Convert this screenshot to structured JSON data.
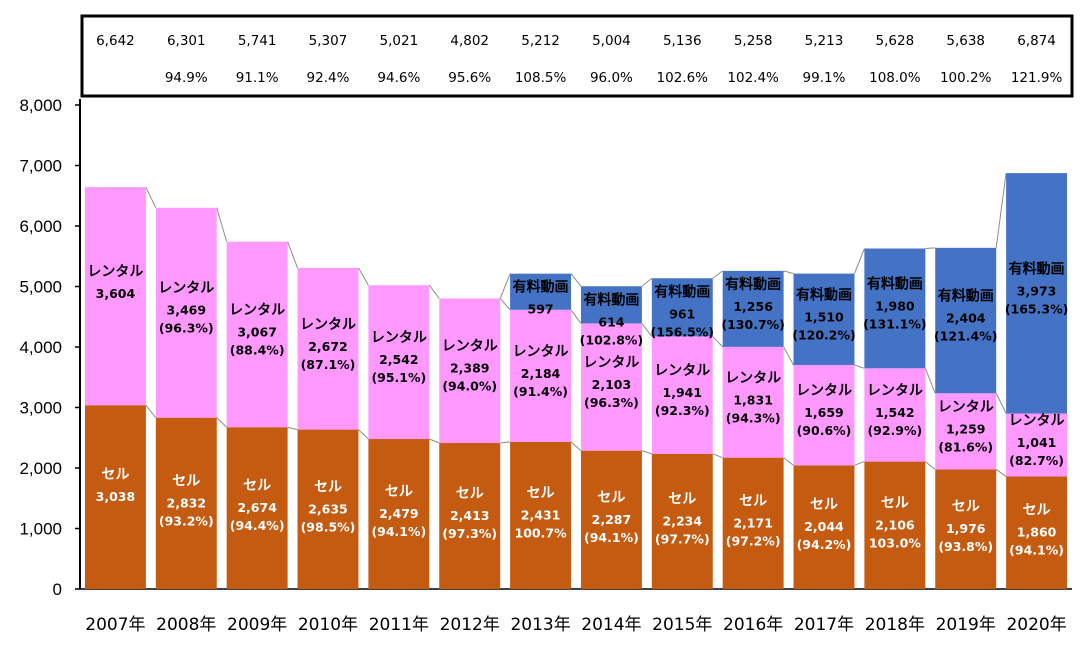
{
  "chart_data": {
    "type": "bar",
    "stacked": true,
    "title": "",
    "xlabel": "",
    "ylabel": "",
    "ylim": [
      0,
      8000
    ],
    "yticks": [
      "0",
      "1,000",
      "2,000",
      "3,000",
      "4,000",
      "5,000",
      "6,000",
      "7,000",
      "8,000"
    ],
    "grid": false,
    "categories": [
      "2007年",
      "2008年",
      "2009年",
      "2010年",
      "2011年",
      "2012年",
      "2013年",
      "2014年",
      "2015年",
      "2016年",
      "2017年",
      "2018年",
      "2019年",
      "2020年"
    ],
    "totals": {
      "values": [
        6642,
        6301,
        5741,
        5307,
        5021,
        4802,
        5212,
        5004,
        5136,
        5258,
        5213,
        5628,
        5638,
        6874
      ],
      "labels": [
        "6,642",
        "6,301",
        "5,741",
        "5,307",
        "5,021",
        "4,802",
        "5,212",
        "5,004",
        "5,136",
        "5,258",
        "5,213",
        "5,628",
        "5,638",
        "6,874"
      ],
      "yoy": [
        "",
        "94.9%",
        "91.1%",
        "92.4%",
        "94.6%",
        "95.6%",
        "108.5%",
        "96.0%",
        "102.6%",
        "102.4%",
        "99.1%",
        "108.0%",
        "100.2%",
        "121.9%"
      ]
    },
    "series": [
      {
        "name": "セル",
        "color": "#c55a11",
        "text_color": "#ffffff",
        "values": [
          3038,
          2832,
          2674,
          2635,
          2479,
          2413,
          2431,
          2287,
          2234,
          2171,
          2044,
          2106,
          1976,
          1860
        ],
        "labels": [
          "3,038",
          "2,832",
          "2,674",
          "2,635",
          "2,479",
          "2,413",
          "2,431",
          "2,287",
          "2,234",
          "2,171",
          "2,044",
          "2,106",
          "1,976",
          "1,860"
        ],
        "yoy": [
          "",
          "(93.2%)",
          "(94.4%)",
          "(98.5%)",
          "(94.1%)",
          "(97.3%)",
          "100.7%",
          "(94.1%)",
          "(97.7%)",
          "(97.2%)",
          "(94.2%)",
          "103.0%",
          "(93.8%)",
          "(94.1%)"
        ]
      },
      {
        "name": "レンタル",
        "color": "#ff99ff",
        "text_color": "#000000",
        "values": [
          3604,
          3469,
          3067,
          2672,
          2542,
          2389,
          2184,
          2103,
          1941,
          1831,
          1659,
          1542,
          1259,
          1041
        ],
        "labels": [
          "3,604",
          "3,469",
          "3,067",
          "2,672",
          "2,542",
          "2,389",
          "2,184",
          "2,103",
          "1,941",
          "1,831",
          "1,659",
          "1,542",
          "1,259",
          "1,041"
        ],
        "yoy": [
          "",
          "(96.3%)",
          "(88.4%)",
          "(87.1%)",
          "(95.1%)",
          "(94.0%)",
          "(91.4%)",
          "(96.3%)",
          "(92.3%)",
          "(94.3%)",
          "(90.6%)",
          "(92.9%)",
          "(81.6%)",
          "(82.7%)"
        ]
      },
      {
        "name": "有料動画",
        "color": "#4472c4",
        "text_color": "#000000",
        "values": [
          0,
          0,
          0,
          0,
          0,
          0,
          597,
          614,
          961,
          1256,
          1510,
          1980,
          2404,
          3973
        ],
        "labels": [
          "",
          "",
          "",
          "",
          "",
          "",
          "597",
          "614",
          "961",
          "1,256",
          "1,510",
          "1,980",
          "2,404",
          "3,973"
        ],
        "yoy": [
          "",
          "",
          "",
          "",
          "",
          "",
          "",
          "(102.8%)",
          "(156.5%)",
          "(130.7%)",
          "(120.2%)",
          "(131.1%)",
          "(121.4%)",
          "(165.3%)"
        ]
      }
    ]
  }
}
